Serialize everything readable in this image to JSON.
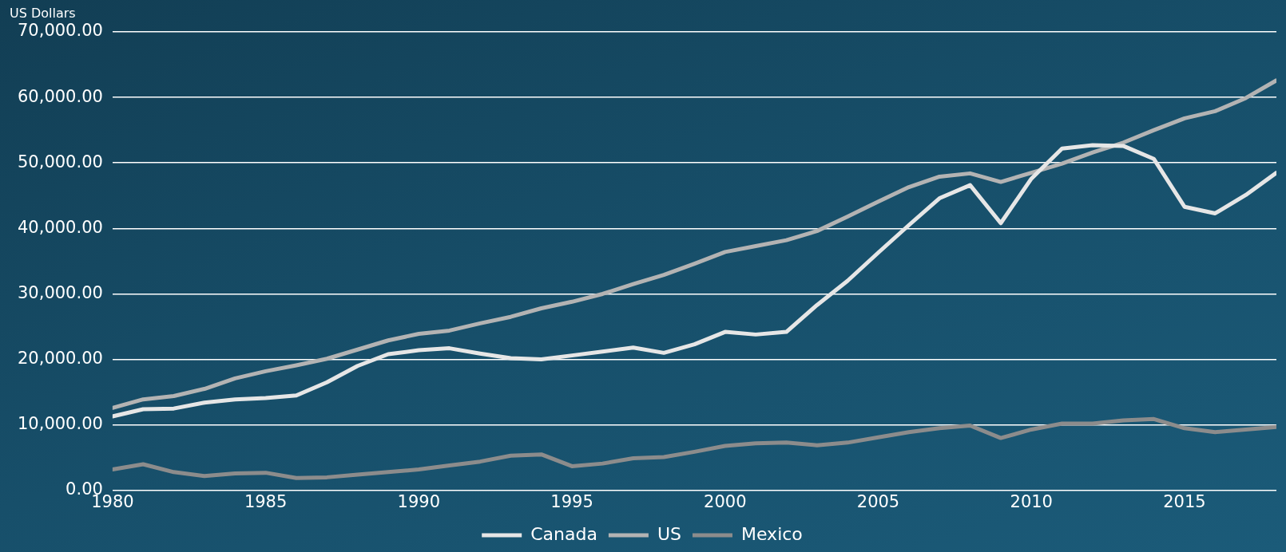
{
  "chart_data": {
    "type": "line",
    "ylabel": "US Dollars",
    "x": [
      1980,
      1981,
      1982,
      1983,
      1984,
      1985,
      1986,
      1987,
      1988,
      1989,
      1990,
      1991,
      1992,
      1993,
      1994,
      1995,
      1996,
      1997,
      1998,
      1999,
      2000,
      2001,
      2002,
      2003,
      2004,
      2005,
      2006,
      2007,
      2008,
      2009,
      2010,
      2011,
      2012,
      2013,
      2014,
      2015,
      2016,
      2017,
      2018
    ],
    "series": [
      {
        "name": "Canada",
        "color": "#e6e6e6",
        "values": [
          11300,
          12400,
          12500,
          13400,
          13900,
          14100,
          14500,
          16500,
          19000,
          20800,
          21400,
          21700,
          20900,
          20200,
          20000,
          20600,
          21200,
          21800,
          21000,
          22300,
          24200,
          23800,
          24200,
          28300,
          32000,
          36300,
          40500,
          44600,
          46600,
          40800,
          47600,
          52200,
          52700,
          52600,
          50600,
          43300,
          42300,
          45100,
          48500
        ]
      },
      {
        "name": "US",
        "color": "#b3b3b3",
        "values": [
          12600,
          13900,
          14400,
          15500,
          17100,
          18200,
          19100,
          20100,
          21500,
          22900,
          23900,
          24400,
          25500,
          26500,
          27800,
          28800,
          30000,
          31500,
          32900,
          34600,
          36400,
          37300,
          38200,
          39600,
          41800,
          44100,
          46300,
          47900,
          48400,
          47100,
          48500,
          49900,
          51600,
          53100,
          55000,
          56800,
          57900,
          59900,
          62600
        ]
      },
      {
        "name": "Mexico",
        "color": "#8c8c8c",
        "values": [
          3200,
          4000,
          2800,
          2200,
          2600,
          2700,
          1900,
          2000,
          2400,
          2800,
          3200,
          3800,
          4400,
          5300,
          5500,
          3700,
          4100,
          4900,
          5100,
          5900,
          6800,
          7200,
          7300,
          6900,
          7300,
          8100,
          8900,
          9500,
          9900,
          8000,
          9300,
          10200,
          10200,
          10700,
          10900,
          9500,
          8900,
          9300,
          9700
        ]
      }
    ],
    "xlim": [
      1980,
      2018
    ],
    "xticks": [
      1980,
      1985,
      1990,
      1995,
      2000,
      2005,
      2010,
      2015
    ],
    "ylim": [
      0,
      70000
    ],
    "yticks": [
      {
        "value": 0,
        "label": "0.00"
      },
      {
        "value": 10000,
        "label": "10,000.00"
      },
      {
        "value": 20000,
        "label": "20,000.00"
      },
      {
        "value": 30000,
        "label": "30,000.00"
      },
      {
        "value": 40000,
        "label": "40,000.00"
      },
      {
        "value": 50000,
        "label": "50,000.00"
      },
      {
        "value": 60000,
        "label": "60,000.00"
      },
      {
        "value": 70000,
        "label": "70,000.00"
      }
    ],
    "grid": "y",
    "legend": "bottom",
    "marker": "none",
    "line_style": "solid"
  }
}
